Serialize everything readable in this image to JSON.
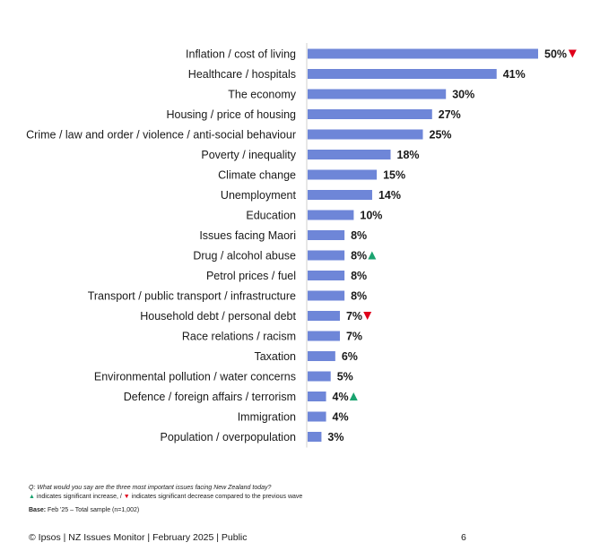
{
  "chart_data": {
    "type": "bar",
    "orientation": "horizontal",
    "categories": [
      "Inflation / cost of living",
      "Healthcare / hospitals",
      "The economy",
      "Housing / price of housing",
      "Crime / law and order / violence / anti-social behaviour",
      "Poverty / inequality",
      "Climate change",
      "Unemployment",
      "Education",
      "Issues facing Maori",
      "Drug / alcohol abuse",
      "Petrol prices / fuel",
      "Transport / public transport / infrastructure",
      "Household debt / personal debt",
      "Race relations / racism",
      "Taxation",
      "Environmental pollution / water concerns",
      "Defence / foreign affairs / terrorism",
      "Immigration",
      "Population / overpopulation"
    ],
    "values": [
      50,
      41,
      30,
      27,
      25,
      18,
      15,
      14,
      10,
      8,
      8,
      8,
      8,
      7,
      7,
      6,
      5,
      4,
      4,
      3
    ],
    "value_labels": [
      "50%",
      "41%",
      "30%",
      "27%",
      "25%",
      "18%",
      "15%",
      "14%",
      "10%",
      "8%",
      "8%",
      "8%",
      "8%",
      "7%",
      "7%",
      "6%",
      "5%",
      "4%",
      "4%",
      "3%"
    ],
    "change_markers": [
      "down",
      "",
      "",
      "",
      "",
      "",
      "",
      "",
      "",
      "",
      "up",
      "",
      "",
      "down",
      "",
      "",
      "",
      "up",
      "",
      ""
    ],
    "xlim": [
      0,
      50
    ],
    "grid": false,
    "colors": {
      "bar": "#6e86d8",
      "increase": "#1aa36f",
      "decrease": "#e0001b",
      "axis": "#cfcfcf"
    }
  },
  "notes": {
    "question": "Q: What would you say are the three most important issues facing New Zealand today?",
    "increase_symbol": "▲",
    "increase_text": " indicates significant increase, / ",
    "decrease_symbol": "▼",
    "decrease_text": " indicates significant decrease compared to the previous wave",
    "base_label": "Base:",
    "base_text": " Feb '25 – Total sample (n=1,002)"
  },
  "footer": {
    "text": "© Ipsos | NZ Issues Monitor | February 2025 | Public",
    "page_number": "6"
  }
}
